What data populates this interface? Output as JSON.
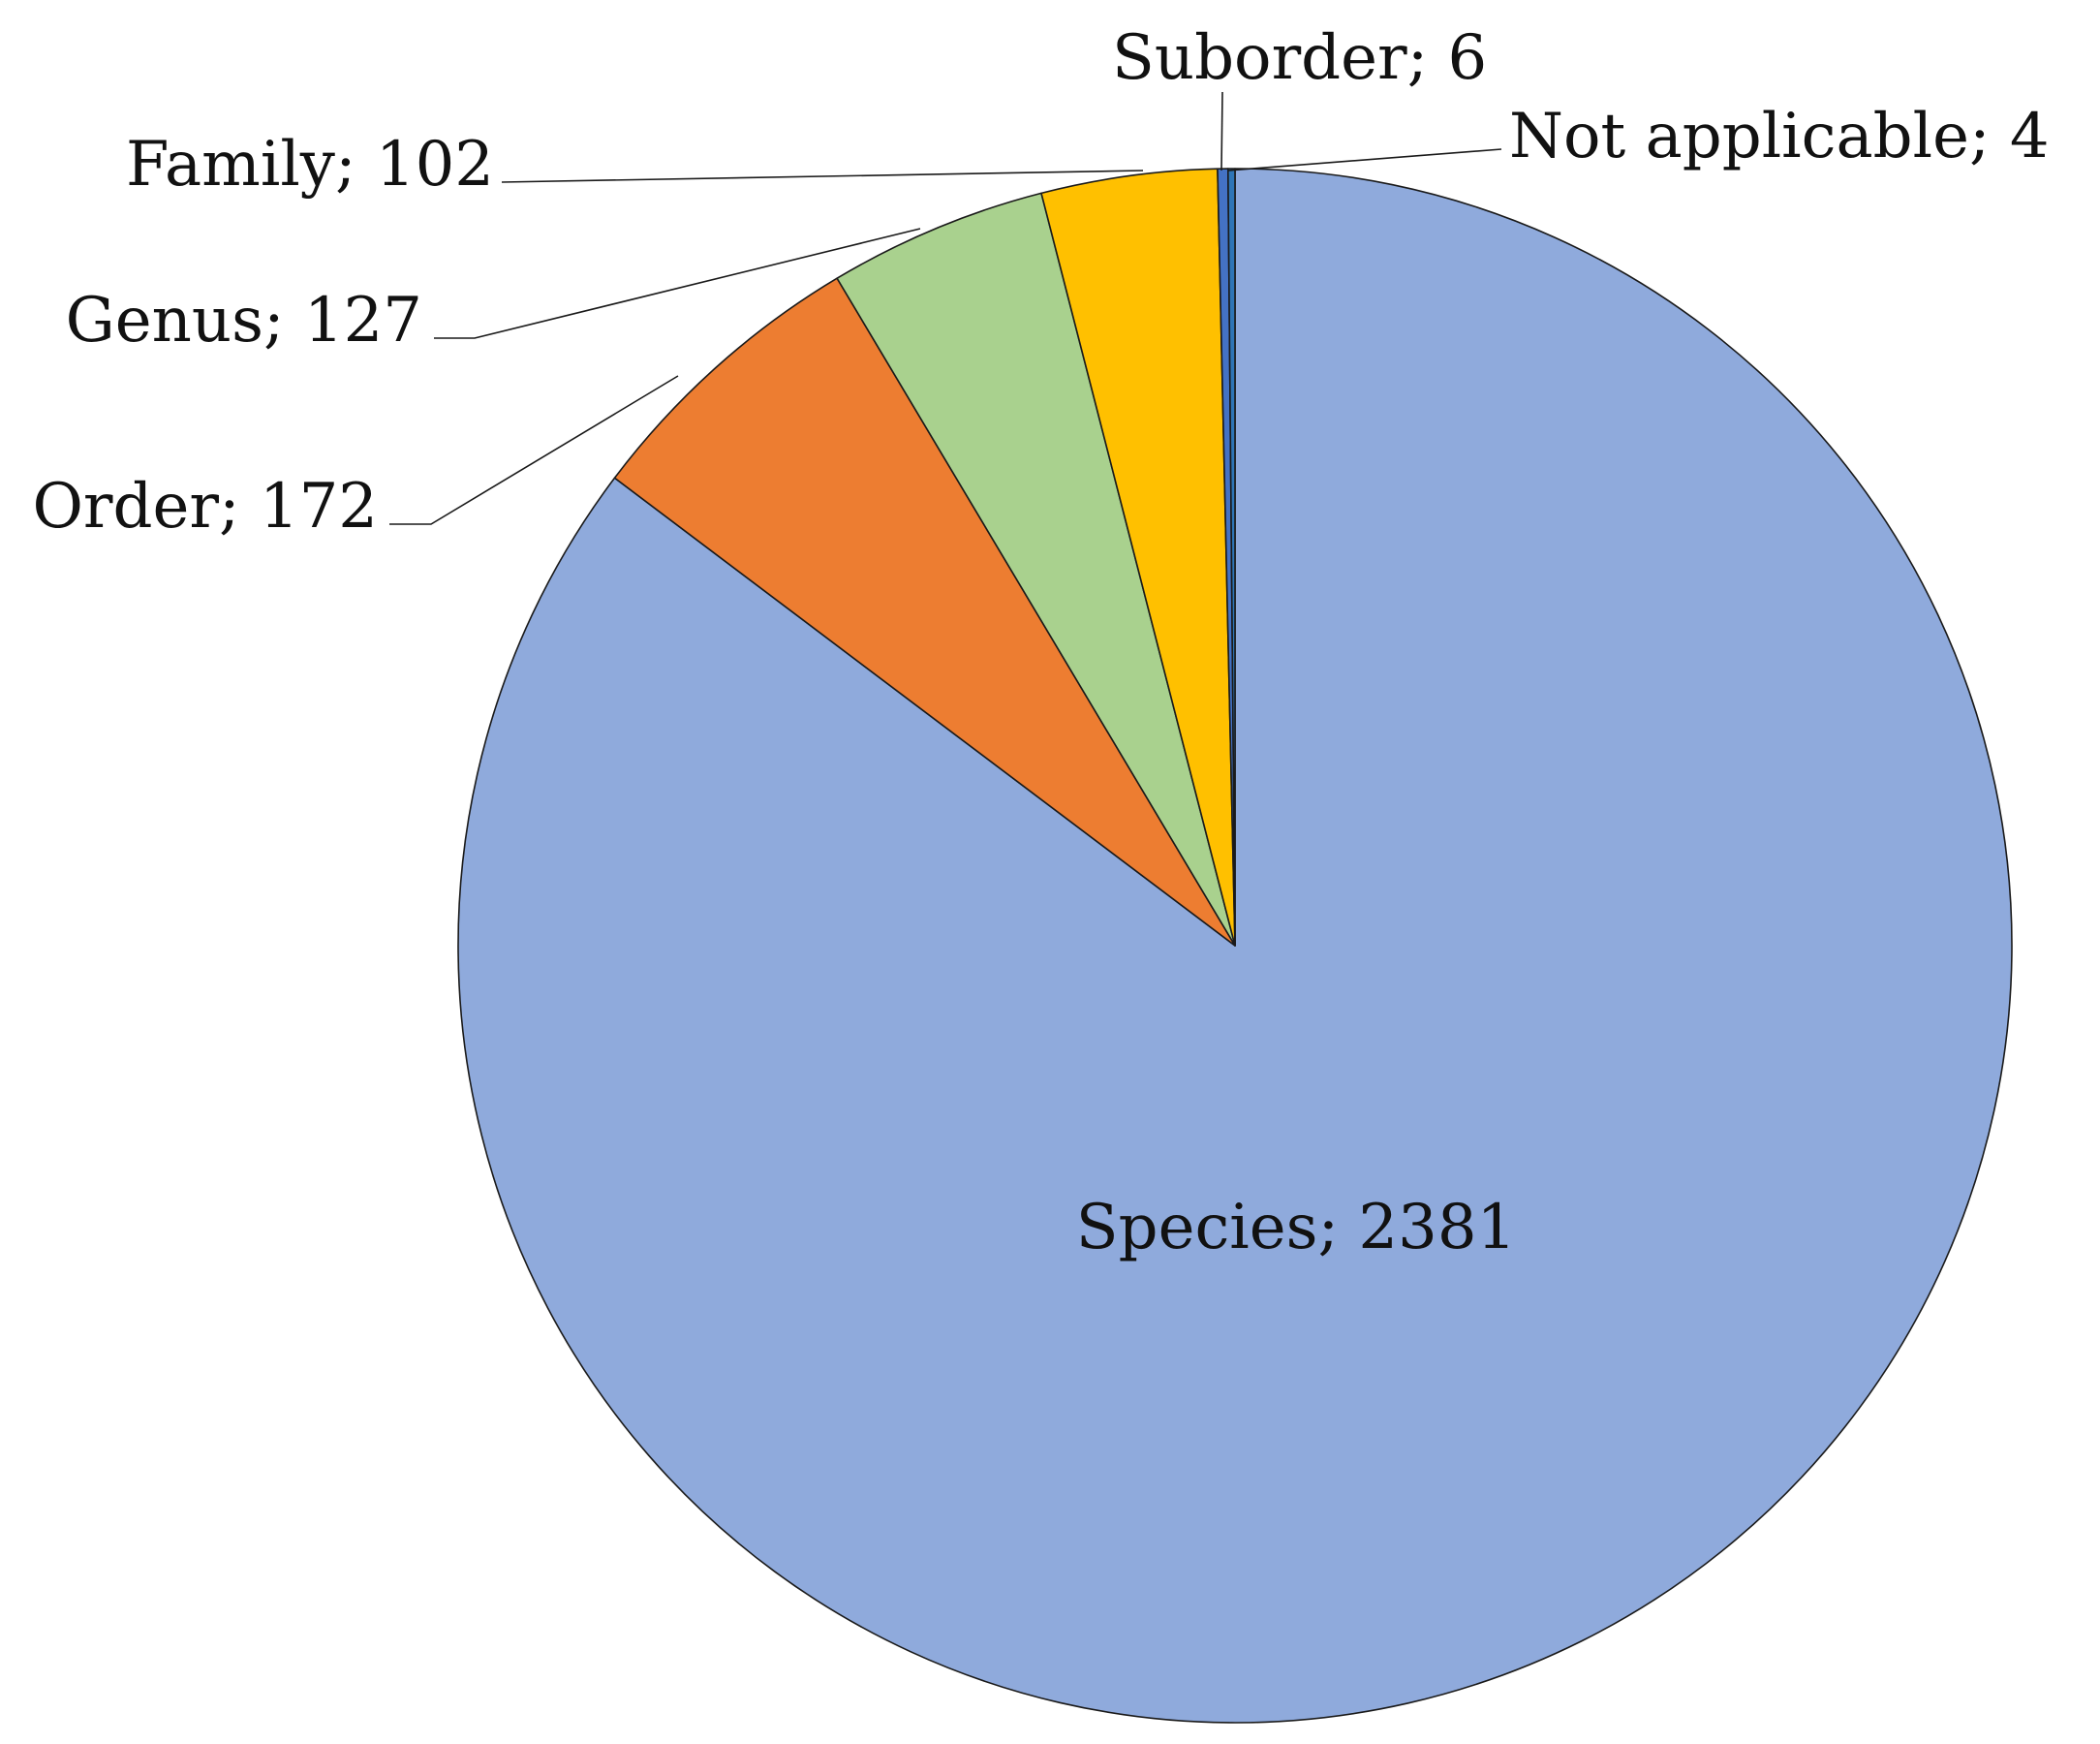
{
  "chart_data": {
    "type": "pie",
    "title": "",
    "start_angle_deg": 0,
    "direction": "clockwise",
    "slices": [
      {
        "label": "Species",
        "value": 2381,
        "color": "#8FAADC",
        "text": "Species; 2381"
      },
      {
        "label": "Order",
        "value": 172,
        "color": "#ED7D31",
        "text": "Order; 172"
      },
      {
        "label": "Genus",
        "value": 127,
        "color": "#A9D18E",
        "text": "Genus; 127"
      },
      {
        "label": "Family",
        "value": 102,
        "color": "#FFC000",
        "text": "Family; 102"
      },
      {
        "label": "Suborder",
        "value": 6,
        "color": "#4472C4",
        "text": "Suborder; 6"
      },
      {
        "label": "Not applicable",
        "value": 4,
        "color": "#2E75B6",
        "text": "Not applicable; 4"
      }
    ],
    "legend": "none"
  }
}
